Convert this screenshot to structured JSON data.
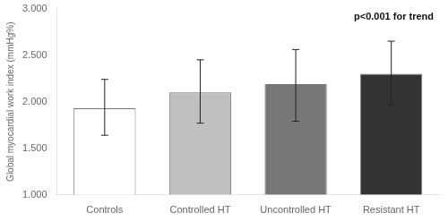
{
  "chart_data": {
    "type": "bar",
    "categories": [
      "Controls",
      "Controlled HT",
      "Uncontrolled HT",
      "Resistant HT"
    ],
    "values": [
      1.93,
      2.1,
      2.19,
      2.3
    ],
    "errors_upper": [
      0.31,
      0.35,
      0.37,
      0.35
    ],
    "errors_lower": [
      0.29,
      0.33,
      0.4,
      0.33
    ],
    "colors": [
      "#ffffff",
      "#c0c0c0",
      "#777777",
      "#333333"
    ],
    "ylabel": "Global myocardial work index (mmHg%)",
    "ylim": [
      1.0,
      3.0
    ],
    "yticks": [
      {
        "value": 1.0,
        "label": "1.000"
      },
      {
        "value": 1.5,
        "label": "1.500"
      },
      {
        "value": 2.0,
        "label": "2.000"
      },
      {
        "value": 2.5,
        "label": "2.500"
      },
      {
        "value": 3.0,
        "label": "3.000"
      }
    ],
    "annotation": "p<0.001 for trend",
    "grid": false
  }
}
